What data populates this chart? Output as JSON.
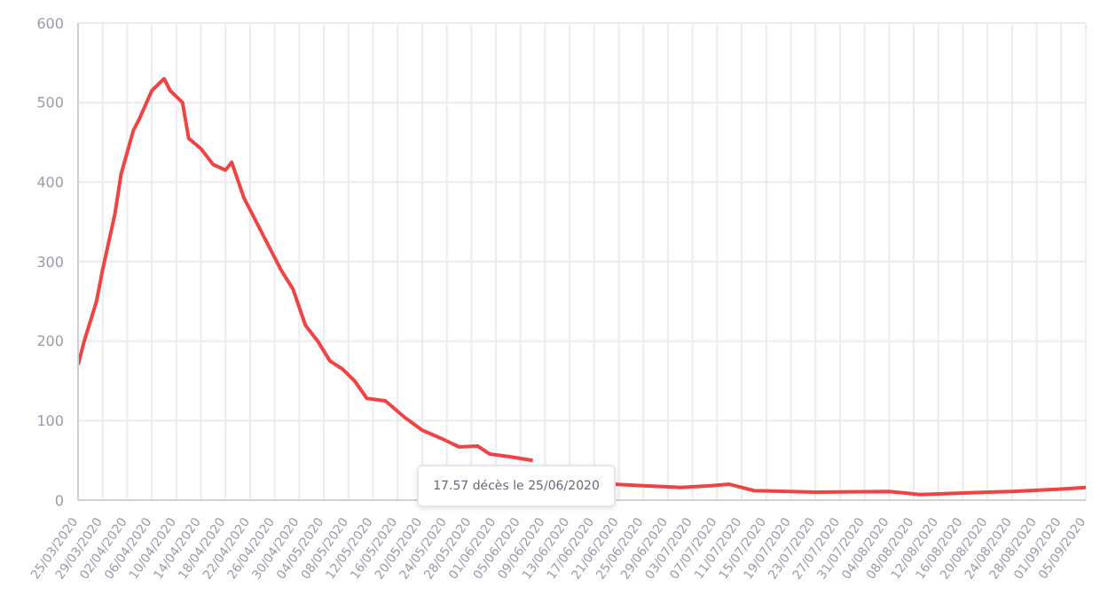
{
  "chart_data": {
    "type": "line",
    "x": [
      "2020-03-25",
      "2020-03-26",
      "2020-03-28",
      "2020-03-29",
      "2020-03-31",
      "2020-04-01",
      "2020-04-03",
      "2020-04-04",
      "2020-04-06",
      "2020-04-08",
      "2020-04-09",
      "2020-04-11",
      "2020-04-12",
      "2020-04-14",
      "2020-04-16",
      "2020-04-18",
      "2020-04-19",
      "2020-04-21",
      "2020-04-23",
      "2020-04-25",
      "2020-04-27",
      "2020-04-29",
      "2020-05-01",
      "2020-05-03",
      "2020-05-05",
      "2020-05-07",
      "2020-05-09",
      "2020-05-11",
      "2020-05-14",
      "2020-05-17",
      "2020-05-20",
      "2020-05-23",
      "2020-05-26",
      "2020-05-29",
      "2020-05-31",
      "2020-06-03",
      "2020-06-07",
      "2020-06-09",
      "2020-06-20",
      "2020-06-25",
      "2020-07-01",
      "2020-07-06",
      "2020-07-09",
      "2020-07-13",
      "2020-07-23",
      "2020-08-04",
      "2020-08-09",
      "2020-08-20",
      "2020-08-24",
      "2020-09-01",
      "2020-09-05"
    ],
    "series": [
      {
        "color": "#ef4444",
        "values": [
          170,
          200,
          250,
          290,
          360,
          410,
          465,
          480,
          515,
          530,
          515,
          500,
          455,
          442,
          422,
          415,
          425,
          380,
          350,
          320,
          290,
          265,
          220,
          200,
          175,
          165,
          150,
          128,
          125,
          105,
          88,
          78,
          67,
          68,
          58,
          55,
          50,
          null,
          20,
          18,
          16,
          18,
          20,
          12,
          10,
          11,
          7,
          10,
          11,
          14,
          16
        ]
      }
    ],
    "xlim": [
      "2020-03-25",
      "2020-09-05"
    ],
    "xticks": [
      {
        "value": "2020-03-25",
        "label": "25/03/2020"
      },
      {
        "value": "2020-03-29",
        "label": "29/03/2020"
      },
      {
        "value": "2020-04-02",
        "label": "02/04/2020"
      },
      {
        "value": "2020-04-06",
        "label": "06/04/2020"
      },
      {
        "value": "2020-04-10",
        "label": "10/04/2020"
      },
      {
        "value": "2020-04-14",
        "label": "14/04/2020"
      },
      {
        "value": "2020-04-18",
        "label": "18/04/2020"
      },
      {
        "value": "2020-04-22",
        "label": "22/04/2020"
      },
      {
        "value": "2020-04-26",
        "label": "26/04/2020"
      },
      {
        "value": "2020-04-30",
        "label": "30/04/2020"
      },
      {
        "value": "2020-05-04",
        "label": "04/05/2020"
      },
      {
        "value": "2020-05-08",
        "label": "08/05/2020"
      },
      {
        "value": "2020-05-12",
        "label": "12/05/2020"
      },
      {
        "value": "2020-05-16",
        "label": "16/05/2020"
      },
      {
        "value": "2020-05-20",
        "label": "20/05/2020"
      },
      {
        "value": "2020-05-24",
        "label": "24/05/2020"
      },
      {
        "value": "2020-05-28",
        "label": "28/05/2020"
      },
      {
        "value": "2020-06-01",
        "label": "01/06/2020"
      },
      {
        "value": "2020-06-05",
        "label": "05/06/2020"
      },
      {
        "value": "2020-06-09",
        "label": "09/06/2020"
      },
      {
        "value": "2020-06-13",
        "label": "13/06/2020"
      },
      {
        "value": "2020-06-17",
        "label": "17/06/2020"
      },
      {
        "value": "2020-06-21",
        "label": "21/06/2020"
      },
      {
        "value": "2020-06-25",
        "label": "25/06/2020"
      },
      {
        "value": "2020-06-29",
        "label": "29/06/2020"
      },
      {
        "value": "2020-07-03",
        "label": "03/07/2020"
      },
      {
        "value": "2020-07-07",
        "label": "07/07/2020"
      },
      {
        "value": "2020-07-11",
        "label": "11/07/2020"
      },
      {
        "value": "2020-07-15",
        "label": "15/07/2020"
      },
      {
        "value": "2020-07-19",
        "label": "19/07/2020"
      },
      {
        "value": "2020-07-23",
        "label": "23/07/2020"
      },
      {
        "value": "2020-07-27",
        "label": "27/07/2020"
      },
      {
        "value": "2020-07-31",
        "label": "31/07/2020"
      },
      {
        "value": "2020-08-04",
        "label": "04/08/2020"
      },
      {
        "value": "2020-08-08",
        "label": "08/08/2020"
      },
      {
        "value": "2020-08-12",
        "label": "12/08/2020"
      },
      {
        "value": "2020-08-16",
        "label": "16/08/2020"
      },
      {
        "value": "2020-08-20",
        "label": "20/08/2020"
      },
      {
        "value": "2020-08-24",
        "label": "24/08/2020"
      },
      {
        "value": "2020-08-28",
        "label": "28/08/2020"
      },
      {
        "value": "2020-09-01",
        "label": "01/09/2020"
      },
      {
        "value": "2020-09-05",
        "label": "05/09/2020"
      }
    ],
    "ylim": [
      0,
      600
    ],
    "yticks": [
      0,
      100,
      200,
      300,
      400,
      500,
      600
    ],
    "grid": true,
    "marker": "none",
    "line_style": "solid",
    "annotations": [
      "17.57 décès le 25/06/2020"
    ]
  }
}
